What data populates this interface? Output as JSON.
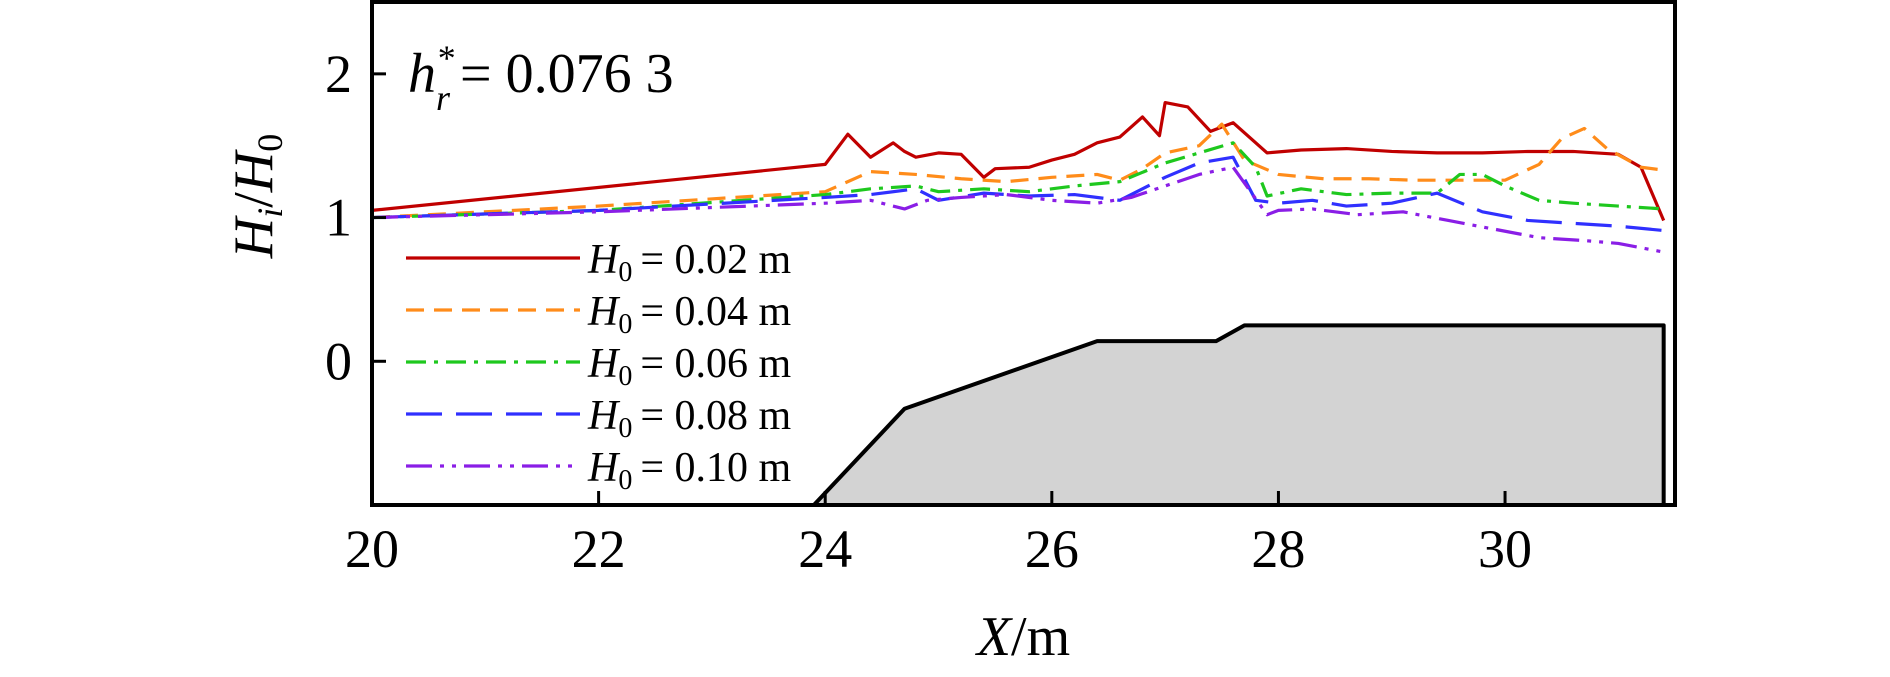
{
  "chart_data": {
    "type": "line",
    "annotation": {
      "var": "h",
      "sup": "*",
      "sub": "r",
      "text": "= 0.076 3"
    },
    "xlabel": {
      "var": "X",
      "unit": "/m"
    },
    "ylabel": {
      "num": "H",
      "num_sub": "i",
      "den": "H",
      "den_sub": "0"
    },
    "xlim": [
      20,
      31.5
    ],
    "ylim": [
      -1,
      2.5
    ],
    "xticks": [
      20,
      22,
      24,
      26,
      28,
      30
    ],
    "yticks": [
      0,
      1,
      2
    ],
    "grid": false,
    "legend_position": "left",
    "series": [
      {
        "label_var": "H",
        "label_sub": "0",
        "label_text": "= 0.02 m",
        "color": "#c00000",
        "dash": "",
        "x": [
          20,
          24,
          24.2,
          24.4,
          24.6,
          24.7,
          24.8,
          25.0,
          25.2,
          25.4,
          25.5,
          25.8,
          26.0,
          26.2,
          26.4,
          26.6,
          26.8,
          26.95,
          27.0,
          27.2,
          27.4,
          27.6,
          27.9,
          28.2,
          28.6,
          29.0,
          29.4,
          29.8,
          30.2,
          30.6,
          31.0,
          31.2,
          31.4
        ],
        "y": [
          1.05,
          1.37,
          1.58,
          1.42,
          1.52,
          1.46,
          1.42,
          1.45,
          1.44,
          1.28,
          1.34,
          1.35,
          1.4,
          1.44,
          1.52,
          1.56,
          1.7,
          1.57,
          1.8,
          1.77,
          1.6,
          1.66,
          1.45,
          1.47,
          1.48,
          1.46,
          1.45,
          1.45,
          1.46,
          1.46,
          1.44,
          1.35,
          0.98
        ]
      },
      {
        "label_var": "H",
        "label_sub": "0",
        "label_text": "= 0.04 m",
        "color": "#ff8c1a",
        "dash": "18,10",
        "x": [
          20,
          22,
          24,
          24.4,
          24.8,
          25.2,
          25.6,
          26.0,
          26.4,
          26.6,
          26.8,
          27.0,
          27.3,
          27.5,
          27.7,
          28.0,
          28.4,
          28.8,
          29.2,
          29.6,
          30.0,
          30.3,
          30.5,
          30.7,
          30.9,
          31.2,
          31.4
        ],
        "y": [
          1.0,
          1.08,
          1.18,
          1.32,
          1.3,
          1.27,
          1.25,
          1.28,
          1.3,
          1.26,
          1.34,
          1.45,
          1.5,
          1.65,
          1.4,
          1.3,
          1.27,
          1.27,
          1.26,
          1.26,
          1.26,
          1.37,
          1.55,
          1.62,
          1.48,
          1.35,
          1.33
        ]
      },
      {
        "label_var": "H",
        "label_sub": "0",
        "label_text": "= 0.06 m",
        "color": "#1ec81e",
        "dash": "20,8,4,8",
        "x": [
          20,
          22,
          24,
          24.4,
          24.8,
          25.0,
          25.4,
          25.8,
          26.2,
          26.6,
          27.0,
          27.3,
          27.6,
          27.8,
          27.9,
          28.2,
          28.6,
          29.0,
          29.4,
          29.6,
          29.8,
          30.0,
          30.3,
          30.6,
          31.0,
          31.4
        ],
        "y": [
          1.0,
          1.05,
          1.16,
          1.2,
          1.22,
          1.18,
          1.2,
          1.18,
          1.22,
          1.25,
          1.38,
          1.45,
          1.52,
          1.35,
          1.15,
          1.2,
          1.16,
          1.17,
          1.17,
          1.3,
          1.3,
          1.22,
          1.12,
          1.1,
          1.08,
          1.06
        ]
      },
      {
        "label_var": "H",
        "label_sub": "0",
        "label_text": "= 0.08 m",
        "color": "#3030ff",
        "dash": "36,14",
        "x": [
          20,
          22,
          24,
          24.4,
          24.8,
          25.0,
          25.4,
          25.8,
          26.2,
          26.6,
          27.0,
          27.3,
          27.6,
          27.8,
          28.0,
          28.3,
          28.6,
          29.0,
          29.4,
          29.8,
          30.2,
          30.6,
          31.0,
          31.4
        ],
        "y": [
          1.0,
          1.05,
          1.14,
          1.16,
          1.2,
          1.12,
          1.17,
          1.15,
          1.16,
          1.12,
          1.28,
          1.38,
          1.42,
          1.12,
          1.1,
          1.12,
          1.08,
          1.1,
          1.17,
          1.04,
          0.98,
          0.96,
          0.94,
          0.91
        ]
      },
      {
        "label_var": "H",
        "label_sub": "0",
        "label_text": "= 0.10 m",
        "color": "#8a1ee6",
        "dash": "26,8,4,8,4,8",
        "x": [
          20,
          22,
          24,
          24.4,
          24.7,
          24.9,
          25.2,
          25.6,
          26.0,
          26.4,
          26.7,
          27.0,
          27.3,
          27.6,
          27.9,
          28.0,
          28.3,
          28.7,
          29.1,
          29.5,
          29.9,
          30.3,
          30.7,
          31.0,
          31.4
        ],
        "y": [
          1.0,
          1.04,
          1.1,
          1.12,
          1.06,
          1.12,
          1.14,
          1.16,
          1.12,
          1.1,
          1.14,
          1.22,
          1.3,
          1.35,
          1.02,
          1.05,
          1.06,
          1.02,
          1.04,
          0.98,
          0.92,
          0.86,
          0.84,
          0.82,
          0.76
        ]
      }
    ],
    "terrain": {
      "color": "#d3d3d3",
      "x": [
        23.9,
        24.7,
        26.4,
        27.45,
        27.7,
        31.4
      ],
      "y": [
        -1.0,
        -0.33,
        0.14,
        0.14,
        0.25,
        0.25
      ]
    }
  }
}
